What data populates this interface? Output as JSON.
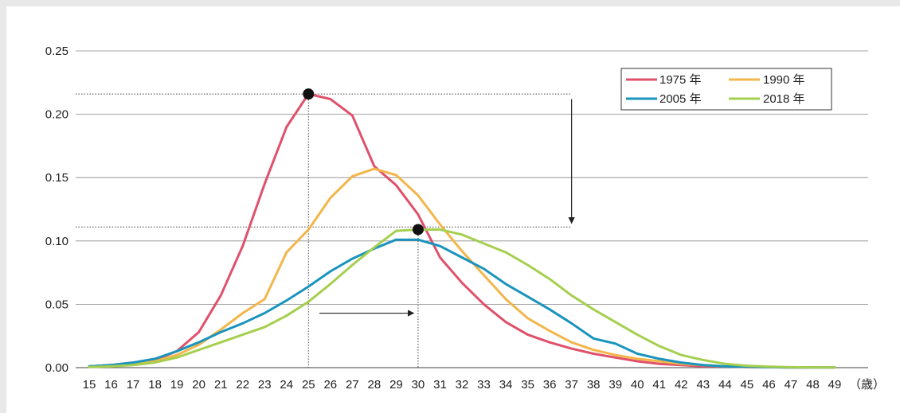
{
  "chart_data": {
    "type": "line",
    "x": [
      15,
      16,
      17,
      18,
      19,
      20,
      21,
      22,
      23,
      24,
      25,
      26,
      27,
      28,
      29,
      30,
      31,
      32,
      33,
      34,
      35,
      36,
      37,
      38,
      39,
      40,
      41,
      42,
      43,
      44,
      45,
      46,
      47,
      48,
      49
    ],
    "x_tick_labels": [
      "15",
      "16",
      "17",
      "18",
      "19",
      "20",
      "21",
      "22",
      "23",
      "24",
      "25",
      "26",
      "27",
      "28",
      "29",
      "30",
      "31",
      "32",
      "33",
      "34",
      "35",
      "36",
      "37",
      "38",
      "39",
      "40",
      "41",
      "42",
      "43",
      "44",
      "45",
      "46",
      "47",
      "48",
      "49"
    ],
    "x_unit": "（歳）",
    "ylim": [
      0,
      0.25
    ],
    "y_ticks": [
      "0.00",
      "0.05",
      "0.10",
      "0.15",
      "0.20",
      "0.25"
    ],
    "grid": "horizontal",
    "legend_position": "top-right",
    "series": [
      {
        "name": "1975 年",
        "color": "#e0506a",
        "values": [
          0.001,
          0.002,
          0.004,
          0.006,
          0.013,
          0.028,
          0.057,
          0.096,
          0.145,
          0.19,
          0.216,
          0.212,
          0.199,
          0.159,
          0.144,
          0.121,
          0.087,
          0.067,
          0.05,
          0.036,
          0.026,
          0.02,
          0.015,
          0.011,
          0.008,
          0.005,
          0.003,
          0.002,
          0.001,
          0.001,
          0.0005,
          0.0003,
          0.0002,
          0.0001,
          0.0001
        ]
      },
      {
        "name": "1990 年",
        "color": "#f2b64a",
        "values": [
          0.001,
          0.002,
          0.003,
          0.005,
          0.01,
          0.018,
          0.03,
          0.043,
          0.054,
          0.091,
          0.109,
          0.134,
          0.151,
          0.157,
          0.152,
          0.136,
          0.113,
          0.092,
          0.073,
          0.054,
          0.039,
          0.029,
          0.02,
          0.014,
          0.01,
          0.007,
          0.005,
          0.003,
          0.002,
          0.001,
          0.0007,
          0.0004,
          0.0002,
          0.0001,
          0.0001
        ]
      },
      {
        "name": "2005 年",
        "color": "#1a94bd",
        "values": [
          0.001,
          0.002,
          0.004,
          0.007,
          0.013,
          0.02,
          0.028,
          0.035,
          0.043,
          0.053,
          0.064,
          0.076,
          0.086,
          0.094,
          0.101,
          0.101,
          0.096,
          0.087,
          0.078,
          0.066,
          0.056,
          0.046,
          0.035,
          0.023,
          0.019,
          0.011,
          0.007,
          0.004,
          0.002,
          0.001,
          0.0007,
          0.0004,
          0.0002,
          0.0001,
          0.0001
        ]
      },
      {
        "name": "2018 年",
        "color": "#a5cf4f",
        "values": [
          0.0005,
          0.001,
          0.002,
          0.004,
          0.008,
          0.014,
          0.02,
          0.026,
          0.032,
          0.041,
          0.052,
          0.066,
          0.081,
          0.095,
          0.108,
          0.109,
          0.109,
          0.105,
          0.098,
          0.091,
          0.081,
          0.07,
          0.057,
          0.046,
          0.036,
          0.026,
          0.017,
          0.01,
          0.006,
          0.003,
          0.0015,
          0.0008,
          0.0004,
          0.0002,
          0.0001
        ]
      }
    ],
    "annotations": [
      {
        "kind": "peak-marker",
        "x": 25,
        "y": 0.216,
        "series": "1975 年"
      },
      {
        "kind": "peak-marker",
        "x": 30,
        "y": 0.109,
        "series": "2018 年"
      },
      {
        "kind": "dotted-hline",
        "y": 0.216,
        "x_from": 15,
        "x_to": 37
      },
      {
        "kind": "dotted-hline",
        "y": 0.111,
        "x_from": 15,
        "x_to": 37
      },
      {
        "kind": "arrow",
        "direction": "down",
        "x": 37,
        "y_from": 0.212,
        "y_to": 0.114
      },
      {
        "kind": "arrow",
        "direction": "right",
        "y": 0.043,
        "x_from": 25.5,
        "x_to": 29.8
      }
    ]
  }
}
